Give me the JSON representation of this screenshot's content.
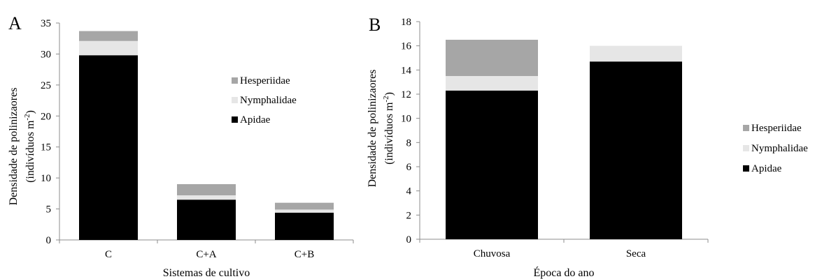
{
  "chart_data": [
    {
      "type": "bar",
      "stacked": true,
      "panel_label": "A",
      "categories": [
        "C",
        "C+A",
        "C+B"
      ],
      "series": [
        {
          "name": "Apidae",
          "values": [
            29.8,
            6.5,
            4.4
          ],
          "color": "#000000"
        },
        {
          "name": "Nymphalidae",
          "values": [
            2.3,
            0.7,
            0.5
          ],
          "color": "#e6e6e6"
        },
        {
          "name": "Hesperiidae",
          "values": [
            1.6,
            1.8,
            1.1
          ],
          "color": "#a6a6a6"
        }
      ],
      "xlabel": "Sistemas de cultivo",
      "ylabel_line1": "Densidade de polinizaores",
      "ylabel_line2": "(indivíduos m",
      "ylabel_sup": "-2",
      "ylabel_close": ")",
      "ylim": [
        0,
        35
      ],
      "yticks": [
        0,
        5,
        10,
        15,
        20,
        25,
        30,
        35
      ],
      "legend_position": "right"
    },
    {
      "type": "bar",
      "stacked": true,
      "panel_label": "B",
      "categories": [
        "Chuvosa",
        "Seca"
      ],
      "series": [
        {
          "name": "Apidae",
          "values": [
            12.3,
            14.7
          ],
          "color": "#000000"
        },
        {
          "name": "Nymphalidae",
          "values": [
            1.2,
            1.3
          ],
          "color": "#e6e6e6"
        },
        {
          "name": "Hesperiidae",
          "values": [
            3.0,
            0.0
          ],
          "color": "#a6a6a6"
        }
      ],
      "xlabel": "Época do ano",
      "ylabel_line1": "Densidade de polinizaores",
      "ylabel_line2": "(indivíduos m",
      "ylabel_sup": "-2",
      "ylabel_close": ")",
      "ylim": [
        0,
        18
      ],
      "yticks": [
        0,
        2,
        4,
        6,
        8,
        10,
        12,
        14,
        16,
        18
      ],
      "legend_position": "right"
    }
  ]
}
